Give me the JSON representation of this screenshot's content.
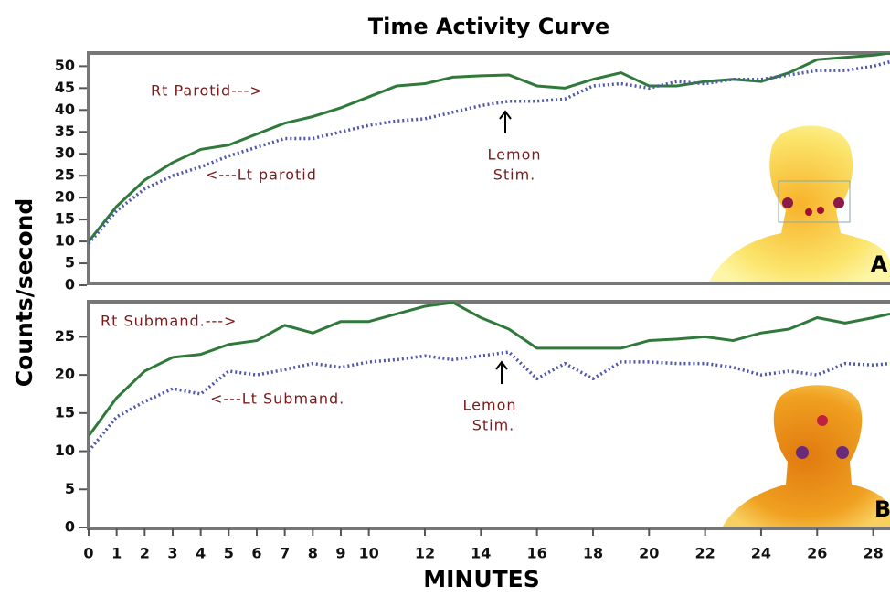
{
  "chart_data": [
    {
      "type": "line",
      "title": "Time Activity Curve",
      "y_label": "Counts/second",
      "x": [
        0,
        1,
        2,
        3,
        4,
        5,
        6,
        7,
        8,
        9,
        10,
        11,
        12,
        13,
        14,
        15,
        16,
        17,
        18,
        19,
        20,
        21,
        22,
        23,
        24,
        25,
        26,
        27,
        28,
        28.6
      ],
      "xlim": [
        0,
        28.6
      ],
      "ylim": [
        0,
        53
      ],
      "yticks": [
        0,
        5,
        10,
        15,
        20,
        25,
        30,
        35,
        40,
        45,
        50
      ],
      "series": [
        {
          "name": "Rt Parotid--->",
          "color": "#2f7a3b",
          "style": "solid",
          "values": [
            10,
            18,
            24,
            28,
            31,
            32,
            34.5,
            37,
            38.5,
            40.5,
            43,
            45.5,
            46,
            47.5,
            47.8,
            48,
            45.5,
            45,
            47,
            48.5,
            45.5,
            45.5,
            46.5,
            47,
            46.5,
            48.5,
            51.5,
            52,
            52.5,
            53
          ]
        },
        {
          "name": "<---Lt parotid",
          "color": "#5058a8",
          "style": "dotted",
          "values": [
            9.5,
            17,
            22,
            25,
            27,
            29.5,
            31.5,
            33.5,
            33.5,
            35,
            36.5,
            37.5,
            38,
            39.5,
            41,
            42,
            42,
            42.5,
            45.5,
            46,
            45,
            46.5,
            46,
            47,
            47,
            48,
            49,
            49,
            50,
            51
          ]
        }
      ],
      "annotations": [
        "Lemon",
        "Stim."
      ],
      "panel_label": "A"
    },
    {
      "type": "line",
      "x_label": "MINUTES",
      "x": [
        0,
        1,
        2,
        3,
        4,
        5,
        6,
        7,
        8,
        9,
        10,
        11,
        12,
        13,
        14,
        15,
        16,
        17,
        18,
        19,
        20,
        21,
        22,
        23,
        24,
        25,
        26,
        27,
        28,
        28.6
      ],
      "xlim": [
        0,
        28.6
      ],
      "ylim": [
        0,
        29.6
      ],
      "yticks": [
        0,
        5,
        10,
        15,
        20,
        25
      ],
      "xticks": [
        0,
        1,
        2,
        3,
        4,
        5,
        6,
        7,
        8,
        9,
        10,
        12,
        14,
        16,
        18,
        20,
        22,
        24,
        26,
        28
      ],
      "series": [
        {
          "name": "Rt Submand.--->",
          "color": "#2f7a3b",
          "style": "solid",
          "values": [
            12,
            17,
            20.5,
            22.3,
            22.7,
            24,
            24.5,
            26.5,
            25.5,
            27,
            27,
            28,
            29,
            29.5,
            27.5,
            26,
            23.5,
            23.5,
            23.5,
            23.5,
            24.5,
            24.7,
            25,
            24.5,
            25.5,
            26,
            27.5,
            26.8,
            27.5,
            28
          ]
        },
        {
          "name": "<---Lt Submand.",
          "color": "#5058a8",
          "style": "dotted",
          "values": [
            10,
            14.5,
            16.5,
            18.2,
            17.5,
            20.5,
            20,
            20.7,
            21.5,
            21,
            21.7,
            22,
            22.5,
            22,
            22.5,
            23,
            19.5,
            21.5,
            19.5,
            21.7,
            21.7,
            21.5,
            21.5,
            21,
            20,
            20.5,
            20,
            21.5,
            21.3,
            21.5
          ]
        }
      ],
      "annotations": [
        "Lemon",
        "Stim."
      ],
      "panel_label": "B"
    }
  ]
}
